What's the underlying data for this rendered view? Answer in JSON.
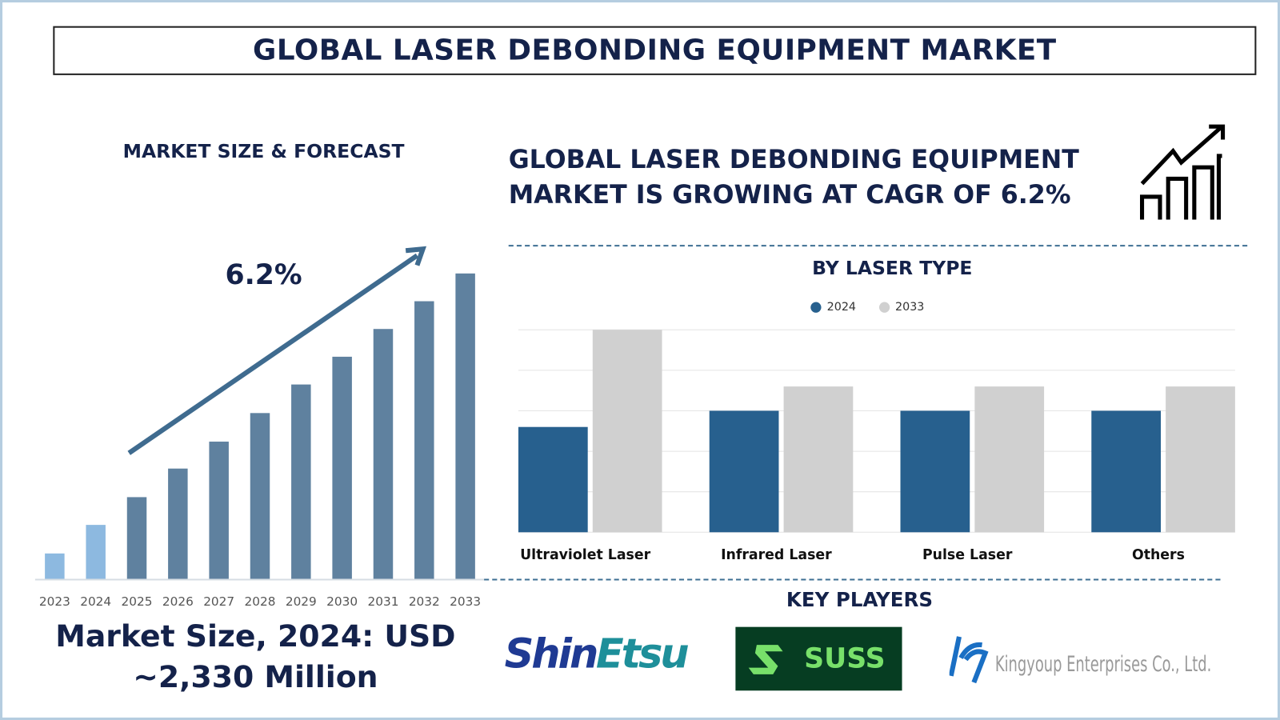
{
  "title": "GLOBAL LASER DEBONDING EQUIPMENT MARKET",
  "left_panel": {
    "heading": "MARKET SIZE & FORECAST",
    "cagr_label": "6.2%",
    "market_size_line1": "Market Size, 2024: USD",
    "market_size_line2": "~2,330 Million"
  },
  "right_panel": {
    "headline_line1": "GLOBAL LASER DEBONDING EQUIPMENT",
    "headline_line2": "MARKET IS GROWING AT CAGR OF 6.2%",
    "icon": "growth-chart-arrow-icon",
    "chart_heading": "BY LASER TYPE",
    "key_players_heading": "KEY PLAYERS",
    "key_players": [
      "ShinEtsu",
      "SUSS",
      "Kingyoup Enterprises Co., Ltd."
    ]
  },
  "chart_data": [
    {
      "type": "bar",
      "title": "MARKET SIZE & FORECAST",
      "categories": [
        "2023",
        "2024",
        "2025",
        "2026",
        "2027",
        "2028",
        "2029",
        "2030",
        "2031",
        "2032",
        "2033"
      ],
      "values": [
        32,
        67,
        101,
        136,
        169,
        204,
        239,
        273,
        307,
        341,
        375
      ],
      "value_units": "relative bar height (no axis printed)",
      "annotation": "6.2%",
      "colors": {
        "historical": "#8db9e0",
        "forecast": "#5f819f",
        "arrow": "#3f6b8f"
      },
      "grid": false
    },
    {
      "type": "bar",
      "title": "BY LASER TYPE",
      "categories": [
        "Ultraviolet Laser",
        "Infrared Laser",
        "Pulse Laser",
        "Others"
      ],
      "series": [
        {
          "name": "2024",
          "values": [
            2.6,
            3.0,
            3.0,
            3.0
          ],
          "color": "#27608e"
        },
        {
          "name": "2033",
          "values": [
            5.0,
            3.6,
            3.6,
            3.6
          ],
          "color": "#d0d0d0"
        }
      ],
      "ylim": [
        0,
        5
      ],
      "grid": true,
      "legend": "top-center"
    }
  ]
}
